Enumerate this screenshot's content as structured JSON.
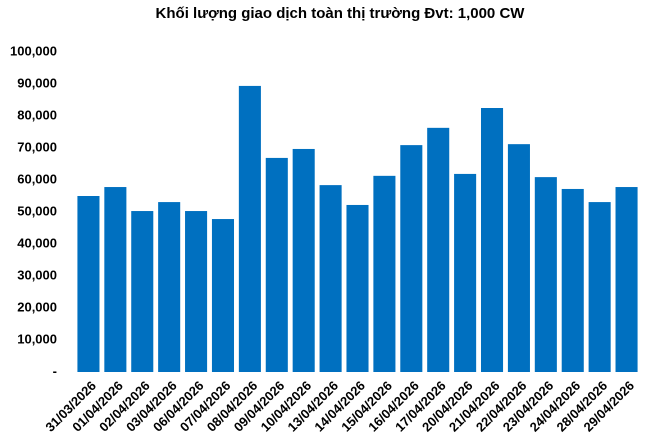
{
  "chart_data": {
    "type": "bar",
    "title": "Khối lượng giao dịch toàn thị trường Đvt: 1,000 CW",
    "categories": [
      "31/03/2026",
      "01/04/2026",
      "02/04/2026",
      "03/04/2026",
      "06/04/2026",
      "07/04/2026",
      "08/04/2026",
      "09/04/2026",
      "10/04/2026",
      "13/04/2026",
      "14/04/2026",
      "15/04/2026",
      "16/04/2026",
      "17/04/2026",
      "20/04/2026",
      "21/04/2026",
      "22/04/2026",
      "23/04/2026",
      "24/04/2026",
      "28/04/2026",
      "29/04/2026"
    ],
    "values": [
      55000,
      57800,
      50300,
      53100,
      50300,
      47800,
      89400,
      66900,
      69700,
      58400,
      52200,
      61300,
      70900,
      76300,
      61900,
      82500,
      71200,
      60900,
      57200,
      53100,
      57800
    ],
    "color": "#0070c0",
    "ylim": [
      0,
      100000
    ],
    "yticks": [
      {
        "value": 0,
        "label": "-"
      },
      {
        "value": 10000,
        "label": "10,000"
      },
      {
        "value": 20000,
        "label": "20,000"
      },
      {
        "value": 30000,
        "label": "30,000"
      },
      {
        "value": 40000,
        "label": "40,000"
      },
      {
        "value": 50000,
        "label": "50,000"
      },
      {
        "value": 60000,
        "label": "60,000"
      },
      {
        "value": 70000,
        "label": "70,000"
      },
      {
        "value": 80000,
        "label": "80,000"
      },
      {
        "value": 90000,
        "label": "90,000"
      },
      {
        "value": 100000,
        "label": "100,000"
      }
    ],
    "grid": false
  }
}
